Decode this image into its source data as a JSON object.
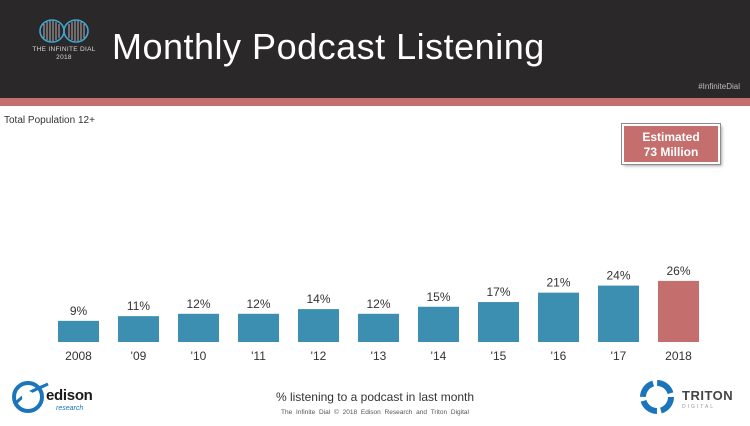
{
  "header": {
    "title": "Monthly Podcast Listening",
    "logo_line1": "THE INFINITE DIAL",
    "logo_line2": "2018",
    "hashtag": "#InfiniteDial"
  },
  "subtitle": "Total Population 12+",
  "callout": {
    "line1": "Estimated",
    "line2": "73 Million"
  },
  "chart_data": {
    "type": "bar",
    "title": "Monthly Podcast Listening",
    "categories": [
      "2008",
      "'09",
      "'10",
      "'11",
      "'12",
      "'13",
      "'14",
      "'15",
      "'16",
      "'17",
      "2018"
    ],
    "values": [
      9,
      11,
      12,
      12,
      14,
      12,
      15,
      17,
      21,
      24,
      26
    ],
    "value_labels": [
      "9%",
      "11%",
      "12%",
      "12%",
      "14%",
      "12%",
      "15%",
      "17%",
      "21%",
      "24%",
      "26%"
    ],
    "xlabel": "% listening to a podcast in last month",
    "ylabel": "",
    "ylim": [
      0,
      30
    ],
    "grid": false,
    "legend": "none",
    "colors": {
      "default": "#3c8fb0",
      "highlight": "#c46f6d"
    },
    "highlight_index": 10
  },
  "footer": {
    "caption": "% listening to a podcast in last month",
    "copyright": "The Infinite Dial   © 2018 Edison Research and Triton Digital",
    "edison_name": "edison",
    "edison_sub": "research",
    "triton_name": "TRITON",
    "triton_sub": "DIGITAL"
  }
}
